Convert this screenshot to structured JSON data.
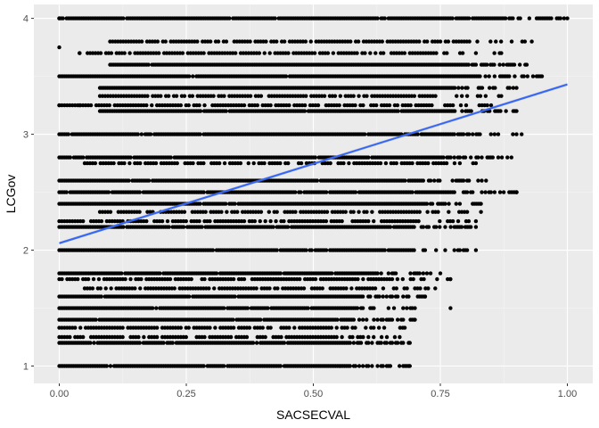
{
  "chart_data": {
    "type": "scatter",
    "xlabel": "SACSECVAL",
    "ylabel": "LCGov",
    "xlim": [
      -0.05,
      1.05
    ],
    "ylim": [
      0.85,
      4.12
    ],
    "x_ticks": [
      0.0,
      0.25,
      0.5,
      0.75,
      1.0
    ],
    "x_tick_labels": [
      "0.00",
      "0.25",
      "0.50",
      "0.75",
      "1.00"
    ],
    "y_ticks": [
      1,
      2,
      3,
      4
    ],
    "y_tick_labels": [
      "1",
      "2",
      "3",
      "4"
    ],
    "grid": true,
    "legend": "none",
    "colors": {
      "panel": "#ebebeb",
      "grid_major": "#ffffff",
      "point": "#000000",
      "fit_line": "#3366ff",
      "confidence_band": "#999999"
    },
    "series": [
      {
        "kind": "points",
        "rows": [
          {
            "y": 4.0,
            "x_min": 0.0,
            "x_max": 1.0,
            "density": "high",
            "extras_x": [
              0.0
            ]
          },
          {
            "y": 3.8,
            "x_min": 0.1,
            "x_max": 0.93,
            "density": "medium",
            "extras_x": []
          },
          {
            "y": 3.75,
            "x_min": 0.0,
            "x_max": 0.0,
            "density": "single",
            "extras_x": [
              0.0
            ]
          },
          {
            "y": 3.7,
            "x_min": 0.04,
            "x_max": 0.87,
            "density": "medium",
            "extras_x": [
              0.04
            ]
          },
          {
            "y": 3.6,
            "x_min": 0.1,
            "x_max": 0.92,
            "density": "high",
            "extras_x": []
          },
          {
            "y": 3.5,
            "x_min": 0.0,
            "x_max": 0.95,
            "density": "high",
            "extras_x": []
          },
          {
            "y": 3.4,
            "x_min": 0.08,
            "x_max": 0.9,
            "density": "high",
            "extras_x": []
          },
          {
            "y": 3.33,
            "x_min": 0.08,
            "x_max": 0.87,
            "density": "medium",
            "extras_x": []
          },
          {
            "y": 3.25,
            "x_min": 0.0,
            "x_max": 0.85,
            "density": "medium",
            "extras_x": [
              0.0,
              0.04
            ]
          },
          {
            "y": 3.2,
            "x_min": 0.08,
            "x_max": 0.9,
            "density": "high",
            "extras_x": []
          },
          {
            "y": 3.0,
            "x_min": 0.0,
            "x_max": 0.91,
            "density": "high",
            "extras_x": []
          },
          {
            "y": 2.8,
            "x_min": 0.0,
            "x_max": 0.89,
            "density": "high",
            "extras_x": []
          },
          {
            "y": 2.75,
            "x_min": 0.05,
            "x_max": 0.82,
            "density": "medium",
            "extras_x": []
          },
          {
            "y": 2.6,
            "x_min": 0.0,
            "x_max": 0.84,
            "density": "high",
            "extras_x": []
          },
          {
            "y": 2.5,
            "x_min": 0.0,
            "x_max": 0.9,
            "density": "high",
            "extras_x": [
              0.9
            ]
          },
          {
            "y": 2.4,
            "x_min": 0.0,
            "x_max": 0.83,
            "density": "high",
            "extras_x": []
          },
          {
            "y": 2.33,
            "x_min": 0.08,
            "x_max": 0.83,
            "density": "medium",
            "extras_x": []
          },
          {
            "y": 2.25,
            "x_min": 0.0,
            "x_max": 0.82,
            "density": "medium",
            "extras_x": []
          },
          {
            "y": 2.2,
            "x_min": 0.0,
            "x_max": 0.82,
            "density": "high",
            "extras_x": []
          },
          {
            "y": 2.0,
            "x_min": 0.0,
            "x_max": 0.82,
            "density": "high",
            "extras_x": []
          },
          {
            "y": 1.8,
            "x_min": 0.0,
            "x_max": 0.75,
            "density": "high",
            "extras_x": []
          },
          {
            "y": 1.75,
            "x_min": 0.0,
            "x_max": 0.77,
            "density": "medium",
            "extras_x": []
          },
          {
            "y": 1.67,
            "x_min": 0.05,
            "x_max": 0.74,
            "density": "medium",
            "extras_x": []
          },
          {
            "y": 1.6,
            "x_min": 0.0,
            "x_max": 0.72,
            "density": "high",
            "extras_x": []
          },
          {
            "y": 1.5,
            "x_min": 0.0,
            "x_max": 0.7,
            "density": "high",
            "extras_x": [
              0.77
            ]
          },
          {
            "y": 1.4,
            "x_min": 0.0,
            "x_max": 0.7,
            "density": "high",
            "extras_x": []
          },
          {
            "y": 1.33,
            "x_min": 0.0,
            "x_max": 0.68,
            "density": "medium",
            "extras_x": []
          },
          {
            "y": 1.25,
            "x_min": 0.0,
            "x_max": 0.67,
            "density": "medium",
            "extras_x": []
          },
          {
            "y": 1.2,
            "x_min": 0.0,
            "x_max": 0.69,
            "density": "high",
            "extras_x": []
          },
          {
            "y": 1.0,
            "x_min": 0.0,
            "x_max": 0.69,
            "density": "high",
            "extras_x": []
          }
        ]
      },
      {
        "kind": "linear_fit",
        "x": [
          0.0,
          1.0
        ],
        "y": [
          2.06,
          3.43
        ]
      }
    ]
  }
}
